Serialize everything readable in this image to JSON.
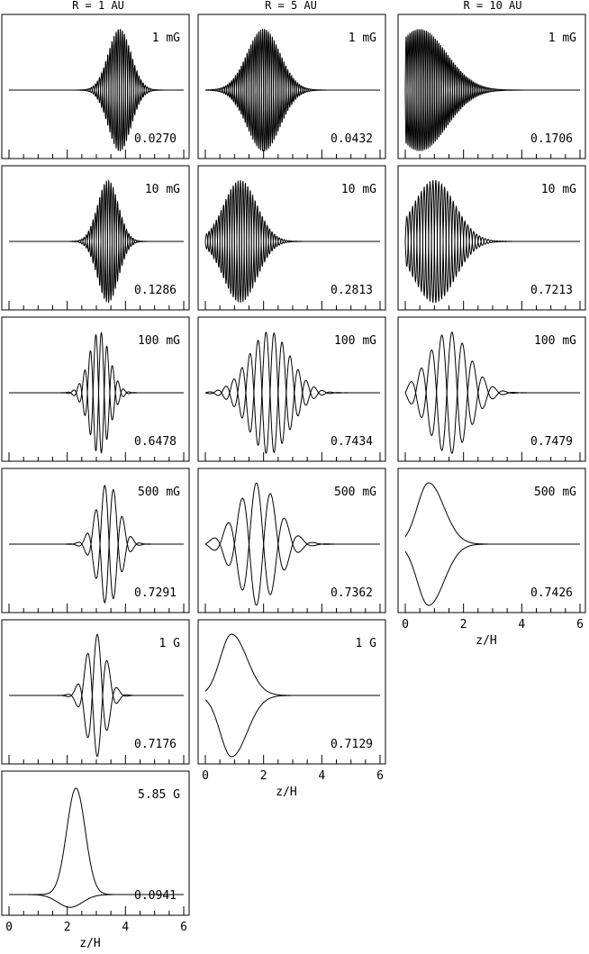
{
  "columns": [
    {
      "title": "R = 1 AU"
    },
    {
      "title": "R = 5 AU"
    },
    {
      "title": "R = 10 AU"
    }
  ],
  "xlabel": "z/H",
  "x_tick_labels": [
    "0",
    "2",
    "4",
    "6"
  ],
  "chart_data": [
    {
      "type": "line",
      "column": "R = 1 AU",
      "field": "1 mG",
      "value_label": "0.0270",
      "xlim": [
        0,
        6
      ],
      "envelope_center_x": 3.8,
      "envelope_width": 0.55,
      "oscillation_freq": 7.0,
      "peak_amplitude": 1.0
    },
    {
      "type": "line",
      "column": "R = 1 AU",
      "field": "10 mG",
      "value_label": "0.1286",
      "xlim": [
        0,
        6
      ],
      "envelope_center_x": 3.4,
      "envelope_width": 0.5,
      "oscillation_freq": 6.5,
      "peak_amplitude": 1.0
    },
    {
      "type": "line",
      "column": "R = 1 AU",
      "field": "100 mG",
      "value_label": "0.6478",
      "xlim": [
        0,
        6
      ],
      "envelope_center_x": 3.1,
      "envelope_width": 0.5,
      "oscillation_freq": 2.6,
      "peak_amplitude": 1.0
    },
    {
      "type": "line",
      "column": "R = 1 AU",
      "field": "500 mG",
      "value_label": "0.7291",
      "xlim": [
        0,
        6
      ],
      "envelope_center_x": 3.4,
      "envelope_width": 0.55,
      "oscillation_freq": 1.6,
      "peak_amplitude": 1.0
    },
    {
      "type": "line",
      "column": "R = 1 AU",
      "field": "1 G",
      "value_label": "0.7176",
      "xlim": [
        0,
        6
      ],
      "envelope_center_x": 3.0,
      "envelope_width": 0.5,
      "oscillation_freq": 1.4,
      "peak_amplitude": 1.0
    },
    {
      "type": "line",
      "column": "R = 1 AU",
      "field": "5.85 G",
      "value_label": "0.0941",
      "xlim": [
        0,
        6
      ],
      "peak_x": 2.3,
      "peak_y": 1.0,
      "lower_dip": 0.12
    },
    {
      "type": "line",
      "column": "R = 5 AU",
      "field": "1 mG",
      "value_label": "0.0432",
      "xlim": [
        0,
        6
      ],
      "envelope_center_x": 2.0,
      "envelope_width": 0.8,
      "oscillation_freq": 7.5,
      "peak_amplitude": 1.0
    },
    {
      "type": "line",
      "column": "R = 5 AU",
      "field": "10 mG",
      "value_label": "0.2813",
      "xlim": [
        0,
        6
      ],
      "envelope_center_x": 1.2,
      "envelope_width": 0.8,
      "oscillation_freq": 6.0,
      "peak_amplitude": 1.0
    },
    {
      "type": "line",
      "column": "R = 5 AU",
      "field": "100 mG",
      "value_label": "0.7434",
      "xlim": [
        0,
        6
      ],
      "envelope_center_x": 2.2,
      "envelope_width": 1.0,
      "oscillation_freq": 1.8,
      "peak_amplitude": 1.0
    },
    {
      "type": "line",
      "column": "R = 5 AU",
      "field": "500 mG",
      "value_label": "0.7362",
      "xlim": [
        0,
        6
      ],
      "envelope_center_x": 1.8,
      "envelope_width": 1.0,
      "oscillation_freq": 1.0,
      "peak_amplitude": 1.0
    },
    {
      "type": "line",
      "column": "R = 5 AU",
      "field": "1 G",
      "value_label": "0.7129",
      "xlim": [
        0,
        6
      ],
      "peak_x": 0.9,
      "peak_y": 1.0
    },
    {
      "type": "line",
      "column": "R = 10 AU",
      "field": "1 mG",
      "value_label": "0.1706",
      "xlim": [
        0,
        6
      ],
      "envelope_center_x": 0.5,
      "envelope_width": 1.3,
      "oscillation_freq": 8.0,
      "peak_amplitude": 1.0
    },
    {
      "type": "line",
      "column": "R = 10 AU",
      "field": "10 mG",
      "value_label": "0.7213",
      "xlim": [
        0,
        6
      ],
      "envelope_center_x": 1.0,
      "envelope_width": 1.0,
      "oscillation_freq": 5.0,
      "peak_amplitude": 1.0
    },
    {
      "type": "line",
      "column": "R = 10 AU",
      "field": "100 mG",
      "value_label": "0.7479",
      "xlim": [
        0,
        6
      ],
      "envelope_center_x": 1.5,
      "envelope_width": 1.0,
      "oscillation_freq": 1.4,
      "peak_amplitude": 1.0
    },
    {
      "type": "line",
      "column": "R = 10 AU",
      "field": "500 mG",
      "value_label": "0.7426",
      "xlim": [
        0,
        6
      ],
      "peak_x": 0.8,
      "peak_y": 1.0
    }
  ]
}
